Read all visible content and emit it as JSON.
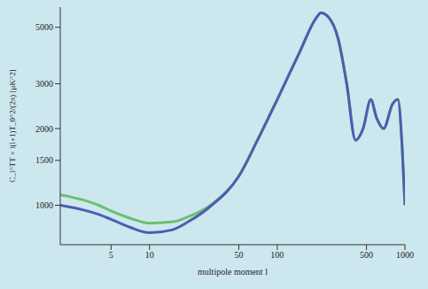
{
  "chart_data": {
    "type": "line",
    "x_label": "multipole moment l",
    "y_label": "C_l^TT × l(l+1)T_0^2/(2π) [μK^2]",
    "x": [
      2,
      3,
      4,
      5,
      7,
      10,
      15,
      20,
      30,
      50,
      70,
      100,
      150,
      200,
      220,
      250,
      300,
      350,
      410,
      470,
      540,
      600,
      680,
      800,
      880,
      950,
      1000
    ],
    "series": [
      {
        "color": "#6cc070",
        "values": [
          1100,
          1050,
          1000,
          950,
          890,
          850,
          860,
          900,
          1000,
          1300,
          1800,
          2600,
          4000,
          5400,
          5700,
          5500,
          4500,
          3000,
          1800,
          2000,
          2600,
          2200,
          2000,
          2500,
          2600,
          1700,
          1000
        ]
      },
      {
        "color": "#4a5fb0",
        "values": [
          1000,
          960,
          920,
          880,
          820,
          780,
          800,
          860,
          990,
          1300,
          1800,
          2600,
          4000,
          5400,
          5700,
          5500,
          4500,
          3000,
          1800,
          2000,
          2600,
          2200,
          2000,
          2500,
          2600,
          1700,
          1000
        ]
      }
    ],
    "xlim": [
      2,
      1000
    ],
    "ylim": [
      700,
      6000
    ],
    "xticks": [
      5,
      10,
      50,
      100,
      500,
      1000
    ],
    "yticks": [
      1000,
      1500,
      2000,
      3000,
      5000
    ],
    "log": true,
    "grid": false
  }
}
